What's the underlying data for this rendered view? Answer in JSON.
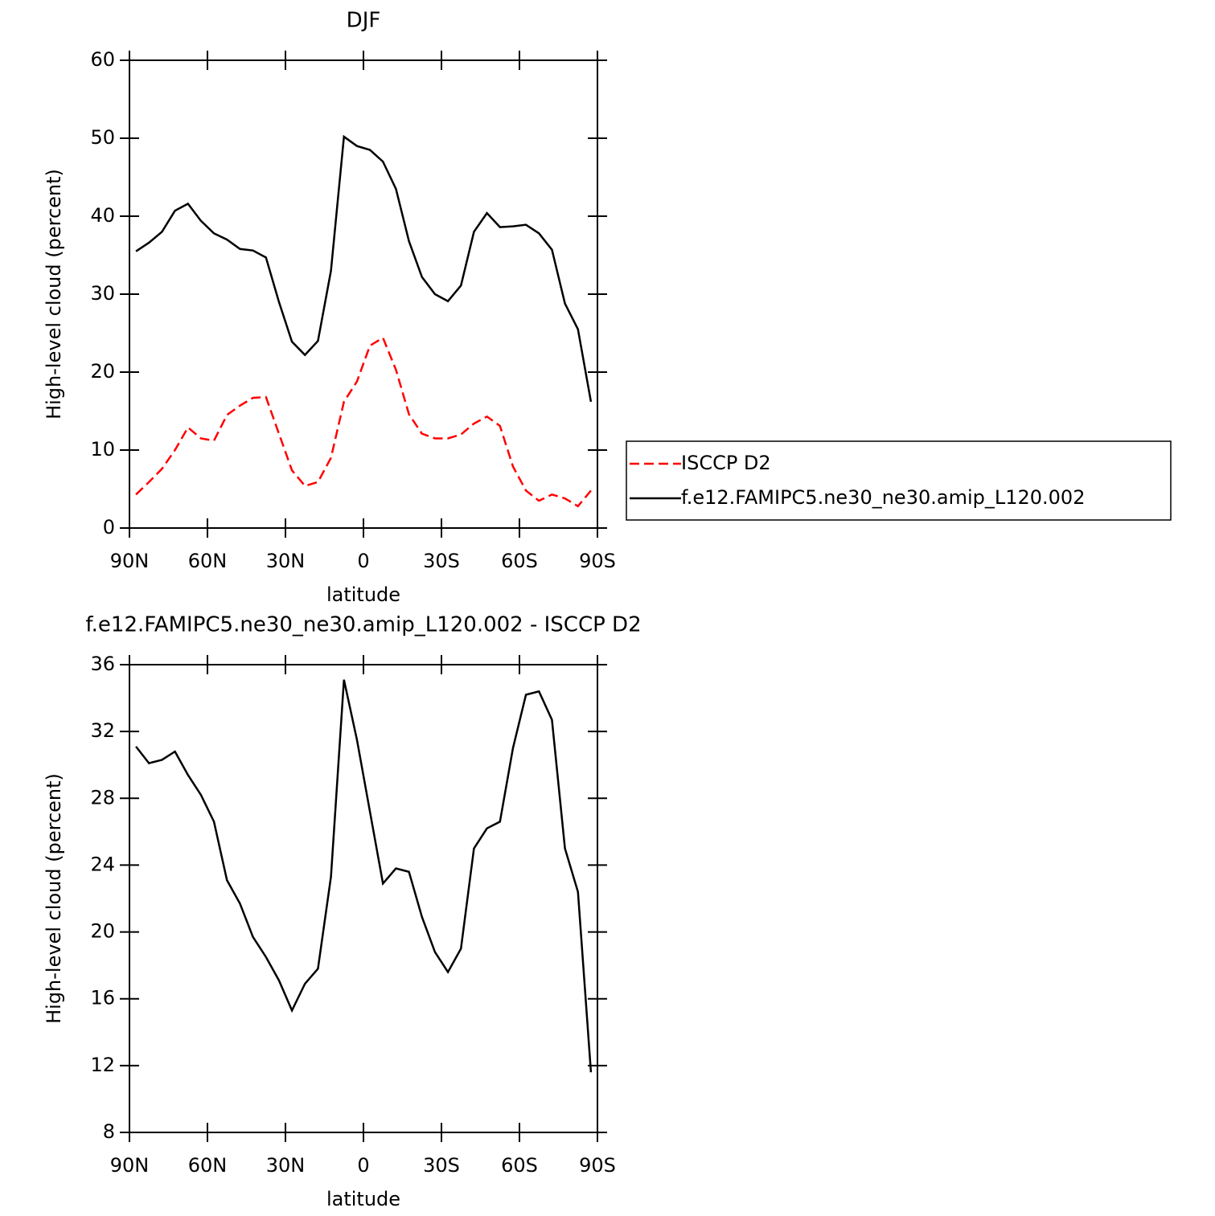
{
  "chart_data": [
    {
      "type": "line",
      "title": "DJF",
      "xlabel": "latitude",
      "ylabel": "High-level cloud (percent)",
      "x": [
        87.5,
        82.5,
        77.5,
        72.5,
        67.5,
        62.5,
        57.5,
        52.5,
        47.5,
        42.5,
        37.5,
        32.5,
        27.5,
        22.5,
        17.5,
        12.5,
        7.5,
        2.5,
        -2.5,
        -7.5,
        -12.5,
        -17.5,
        -22.5,
        -27.5,
        -32.5,
        -37.5,
        -42.5,
        -47.5,
        -52.5,
        -57.5,
        -62.5,
        -67.5,
        -72.5,
        -77.5,
        -82.5,
        -87.5
      ],
      "series": [
        {
          "name": "ISCCP D2",
          "color": "#ff0000",
          "linestyle": "dashed",
          "values": [
            4.3,
            5.9,
            7.6,
            10,
            12.9,
            11.5,
            11.2,
            14.5,
            15.7,
            16.7,
            16.8,
            12.1,
            7.4,
            5.4,
            5.9,
            9,
            16.2,
            18.8,
            23.4,
            24.4,
            20.3,
            14.6,
            12.1,
            11.5,
            11.5,
            12,
            13.4,
            14.3,
            13.1,
            7.9,
            4.8,
            3.5,
            4.3,
            3.8,
            2.8,
            4.8
          ]
        },
        {
          "name": "f.e12.FAMIPC5.ne30_ne30.amip_L120.002",
          "color": "#000000",
          "linestyle": "solid",
          "values": [
            35.5,
            36.6,
            38,
            40.7,
            41.6,
            39.4,
            37.8,
            37,
            35.8,
            35.6,
            34.7,
            29,
            23.9,
            22.2,
            24,
            33,
            50.2,
            49,
            48.5,
            47,
            43.5,
            36.8,
            32.2,
            30,
            29.1,
            31.1,
            38,
            40.4,
            38.6,
            38.7,
            38.9,
            37.8,
            35.7,
            28.8,
            25.5,
            16.2
          ]
        }
      ],
      "xlim": [
        90,
        -90
      ],
      "xticks": [
        {
          "value": 90,
          "label": "90N"
        },
        {
          "value": 60,
          "label": "60N"
        },
        {
          "value": 30,
          "label": "30N"
        },
        0,
        {
          "value": -30,
          "label": "30S"
        },
        {
          "value": -60,
          "label": "60S"
        },
        {
          "value": -90,
          "label": "90S"
        }
      ],
      "ylim": [
        0,
        60
      ],
      "yticks": [
        0,
        10,
        20,
        30,
        40,
        50,
        60
      ],
      "legend": "right"
    },
    {
      "type": "line",
      "title": "f.e12.FAMIPC5.ne30_ne30.amip_L120.002 - ISCCP D2",
      "xlabel": "latitude",
      "ylabel": "High-level cloud (percent)",
      "x": [
        87.5,
        82.5,
        77.5,
        72.5,
        67.5,
        62.5,
        57.5,
        52.5,
        47.5,
        42.5,
        37.5,
        32.5,
        27.5,
        22.5,
        17.5,
        12.5,
        7.5,
        2.5,
        -2.5,
        -7.5,
        -12.5,
        -17.5,
        -22.5,
        -27.5,
        -32.5,
        -37.5,
        -42.5,
        -47.5,
        -52.5,
        -57.5,
        -62.5,
        -67.5,
        -72.5,
        -77.5,
        -82.5,
        -87.5
      ],
      "series": [
        {
          "color": "#000000",
          "linestyle": "solid",
          "values": [
            31.1,
            30.1,
            30.3,
            30.8,
            29.4,
            28.2,
            26.6,
            23.1,
            21.7,
            19.7,
            18.5,
            17.1,
            15.3,
            16.9,
            17.8,
            23.3,
            35.1,
            31.5,
            27.2,
            22.9,
            23.8,
            23.6,
            20.9,
            18.8,
            17.6,
            19,
            25,
            26.2,
            26.6,
            31,
            34.2,
            34.4,
            32.7,
            25,
            22.4,
            11.6
          ]
        }
      ],
      "xlim": [
        90,
        -90
      ],
      "xticks": [
        {
          "value": 90,
          "label": "90N"
        },
        {
          "value": 60,
          "label": "60N"
        },
        {
          "value": 30,
          "label": "30N"
        },
        0,
        {
          "value": -30,
          "label": "30S"
        },
        {
          "value": -60,
          "label": "60S"
        },
        {
          "value": -90,
          "label": "90S"
        }
      ],
      "ylim": [
        8,
        36
      ],
      "yticks": [
        8,
        12,
        16,
        20,
        24,
        28,
        32,
        36
      ]
    }
  ]
}
